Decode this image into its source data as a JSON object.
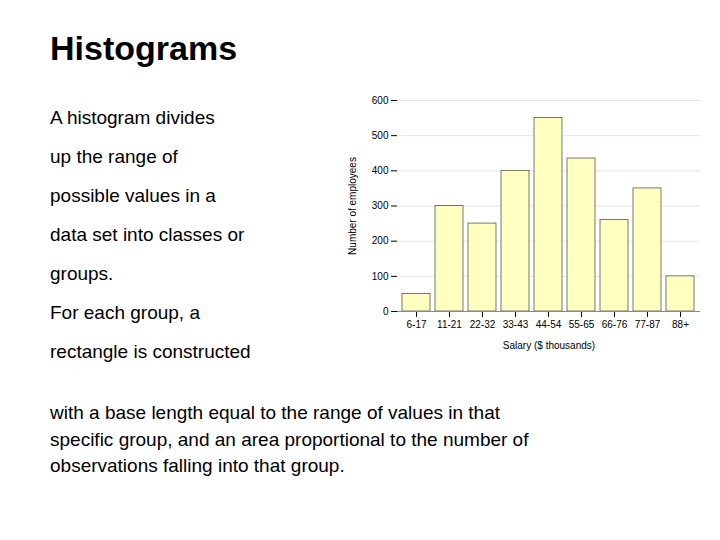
{
  "chart_data": {
    "type": "bar",
    "title": "Histograms",
    "categories": [
      "6-17",
      "11-21",
      "22-32",
      "33-43",
      "44-54",
      "55-65",
      "66-76",
      "77-87",
      "88+"
    ],
    "values": [
      50,
      300,
      250,
      400,
      550,
      435,
      260,
      350,
      100
    ],
    "color": "#FFFFC0",
    "xlabel": "Salary ($ thousands)",
    "ylabel": "Number of employees",
    "ylim": [
      0,
      600
    ],
    "yticks": [
      0,
      100,
      200,
      300,
      400,
      500,
      600
    ],
    "grid": true,
    "annotations": [
      [
        "A histogram divides",
        "up the range of",
        "possible values in a",
        "data set into classes or",
        "groups.",
        "For each group, a",
        "rectangle is constructed"
      ],
      [
        "with a base length equal to the range of values in that",
        "specific group, and an area proportional to the number of",
        "observations falling into that group."
      ]
    ]
  }
}
